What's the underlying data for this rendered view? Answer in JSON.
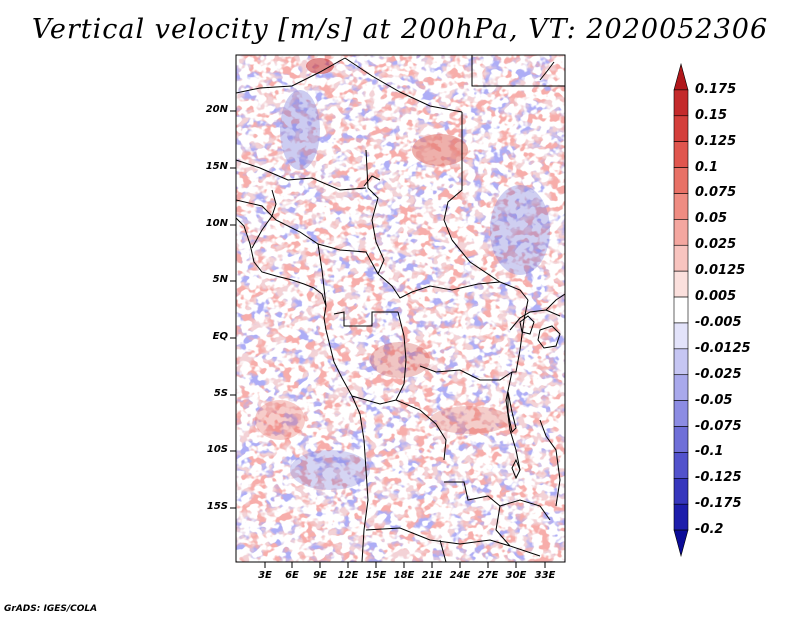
{
  "title": "Vertical velocity [m/s] at 200hPa, VT: 2020052306",
  "footer": "GrADS: IGES/COLA",
  "map": {
    "lat_labels": [
      "20N",
      "15N",
      "10N",
      "5N",
      "EQ",
      "5S",
      "10S",
      "15S"
    ],
    "lon_labels": [
      "3E",
      "6E",
      "9E",
      "12E",
      "15E",
      "18E",
      "21E",
      "24E",
      "27E",
      "30E",
      "33E"
    ]
  },
  "colorbar": {
    "labels": [
      "0.175",
      "0.15",
      "0.125",
      "0.1",
      "0.075",
      "0.05",
      "0.025",
      "0.0125",
      "0.005",
      "-0.005",
      "-0.0125",
      "-0.025",
      "-0.05",
      "-0.075",
      "-0.1",
      "-0.125",
      "-0.175",
      "-0.2"
    ],
    "colors": [
      "#b0171b",
      "#c42a2b",
      "#d43f3b",
      "#e0564e",
      "#e87166",
      "#ef8c82",
      "#f4a7a0",
      "#f8c4bf",
      "#fbe0dd",
      "#ffffff",
      "#e3e3fa",
      "#c6c6f3",
      "#a9a9ec",
      "#8c8ce3",
      "#6f6fd8",
      "#5252cc",
      "#3636bd",
      "#1d1dab",
      "#0b0b97"
    ]
  }
}
